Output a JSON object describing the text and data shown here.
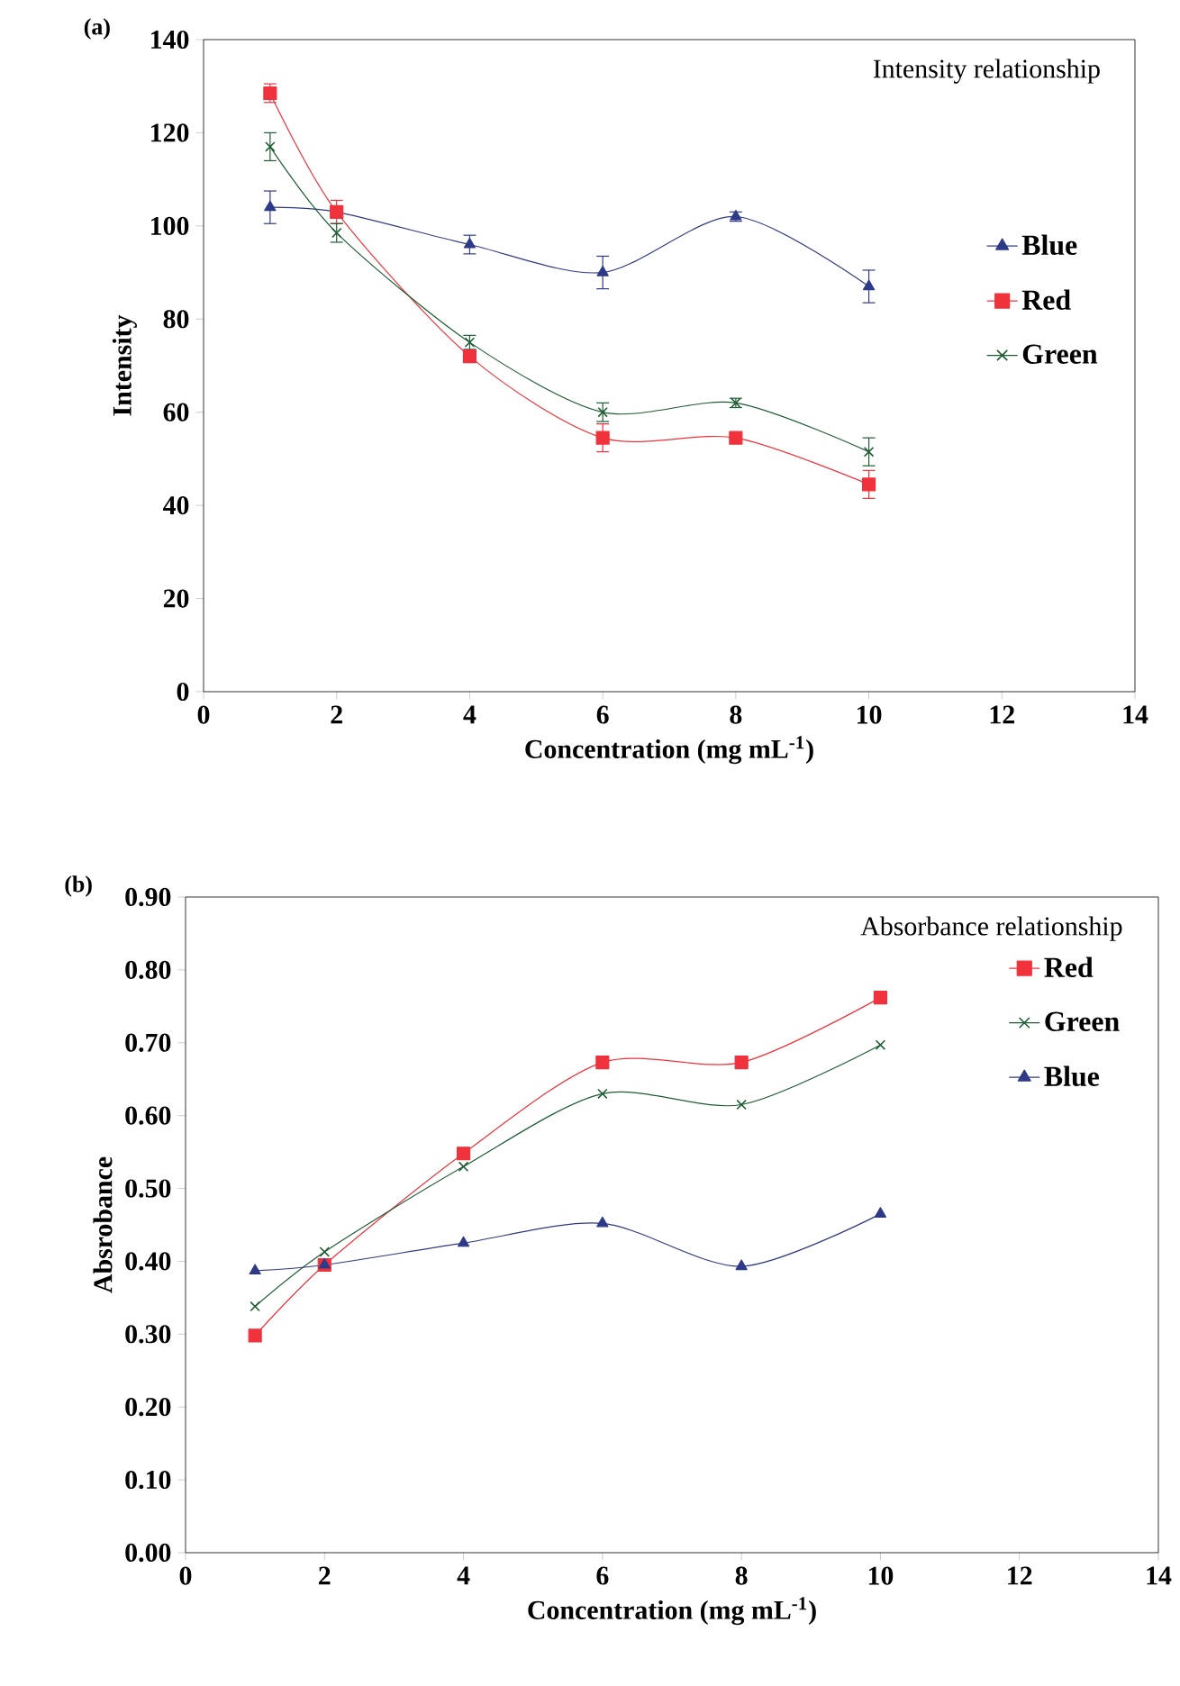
{
  "chart_data": [
    {
      "type": "line",
      "title": "(a)",
      "subtitle": "Intensity relationship",
      "xlabel": "Concentration (mg mL$^{-1}$)",
      "ylabel": "Intensity",
      "xlim": [
        0,
        14
      ],
      "xticks": [
        0,
        2,
        4,
        6,
        8,
        10,
        12,
        14
      ],
      "ylim": [
        0,
        140
      ],
      "yticks": [
        0,
        20,
        40,
        60,
        80,
        100,
        120,
        140
      ],
      "grid": false,
      "legend": "right",
      "x": [
        1,
        2,
        4,
        6,
        8,
        10
      ],
      "series": [
        {
          "name": "Blue",
          "color": "#2e3a87",
          "marker": "triangle",
          "values": [
            104,
            103,
            96,
            90,
            102,
            87
          ],
          "errors": [
            3.5,
            null,
            2,
            3.5,
            1,
            3.5
          ]
        },
        {
          "name": "Red",
          "color": "#f0323c",
          "marker": "square",
          "values": [
            128.5,
            103,
            72,
            54.5,
            54.5,
            44.5
          ],
          "errors": [
            2,
            2.5,
            1,
            3,
            1,
            3
          ]
        },
        {
          "name": "Green",
          "color": "#1e5c32",
          "marker": "cross",
          "values": [
            117,
            98.5,
            75,
            60,
            62,
            51.5
          ],
          "errors": [
            3,
            2,
            1.5,
            2,
            1,
            3
          ]
        }
      ]
    },
    {
      "type": "line",
      "title": "(b)",
      "subtitle": "Absorbance relationship",
      "xlabel": "Concentration (mg mL$^{-1}$)",
      "ylabel": "Absrobance",
      "xlim": [
        0,
        14
      ],
      "xticks": [
        0,
        2,
        4,
        6,
        8,
        10,
        12,
        14
      ],
      "ylim": [
        0,
        0.9
      ],
      "yticks": [
        {
          "value": 0,
          "label": "0.00"
        },
        {
          "value": 0.1,
          "label": "0.10"
        },
        {
          "value": 0.2,
          "label": "0.20"
        },
        {
          "value": 0.3,
          "label": "0.30"
        },
        {
          "value": 0.4,
          "label": "0.40"
        },
        {
          "value": 0.5,
          "label": "0.50"
        },
        {
          "value": 0.6,
          "label": "0.60"
        },
        {
          "value": 0.7,
          "label": "0.70"
        },
        {
          "value": 0.8,
          "label": "0.80"
        },
        {
          "value": 0.9,
          "label": "0.90"
        }
      ],
      "grid": false,
      "legend": "top right",
      "x": [
        1,
        2,
        4,
        6,
        8,
        10
      ],
      "series": [
        {
          "name": "Red",
          "color": "#f0323c",
          "marker": "square",
          "values": [
            0.298,
            0.395,
            0.548,
            0.673,
            0.673,
            0.762
          ]
        },
        {
          "name": "Green",
          "color": "#1e5c32",
          "marker": "cross",
          "values": [
            0.338,
            0.413,
            0.53,
            0.63,
            0.615,
            0.697
          ]
        },
        {
          "name": "Blue",
          "color": "#2e3a87",
          "marker": "triangle",
          "values": [
            0.387,
            0.395,
            0.425,
            0.452,
            0.393,
            0.465
          ]
        }
      ]
    }
  ]
}
